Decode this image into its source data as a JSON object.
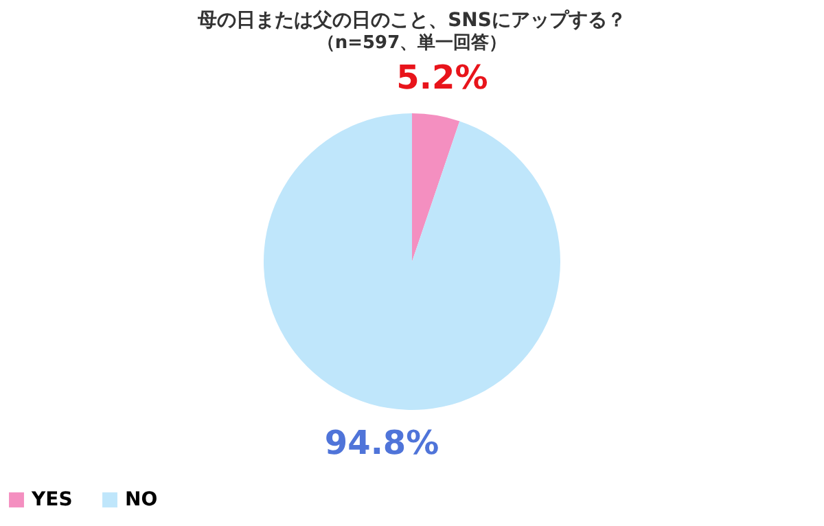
{
  "chart_data": {
    "type": "pie",
    "title": "母の日または父の日のこと、SNSにアップする？",
    "subtitle": "（n=597、単一回答）",
    "categories": [
      "YES",
      "NO"
    ],
    "values": [
      5.2,
      94.8
    ],
    "colors": [
      "#f48fc0",
      "#bfe6fb"
    ],
    "value_labels": [
      "5.2%",
      "94.8%"
    ],
    "legend": "bottom"
  }
}
